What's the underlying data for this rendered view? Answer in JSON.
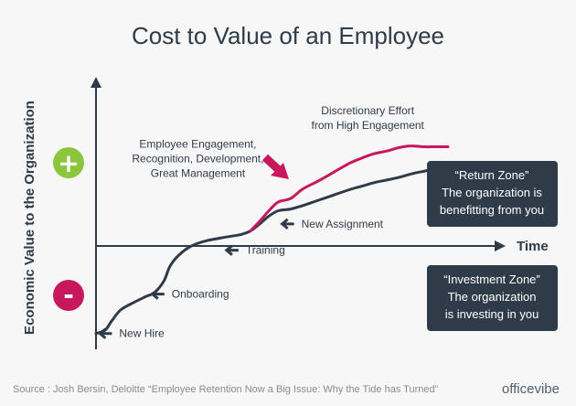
{
  "title": "Cost to Value of an Employee",
  "source": "Source : Josh Bersin, Deloitte “Employee Retention Now a Big Issue: Why the Tide has Turned”",
  "brand": "officevibe",
  "colors": {
    "background": "#f7f7f7",
    "dark": "#2f3b48",
    "engagement_line": "#c8175d",
    "plus": "#8cc63f",
    "minus": "#c8175d",
    "source_text": "#8a8a8a"
  },
  "zones": {
    "return": {
      "title": "“Return Zone”",
      "line1": "The organization is",
      "line2": "benefitting from you"
    },
    "investment": {
      "title": "“Investment Zone”",
      "line1": "The organization",
      "line2": "is investing in you"
    }
  },
  "chart_data": {
    "type": "line",
    "xlabel": "Time",
    "ylabel": "Economic Value to the Organization",
    "y_positive_symbol": "+",
    "y_negative_symbol": "-",
    "series": [
      {
        "values": [
          [
            0,
            -82
          ],
          [
            3,
            -78
          ],
          [
            5,
            -68
          ],
          [
            8,
            -55
          ],
          [
            12,
            -47
          ],
          [
            16,
            -40
          ],
          [
            19,
            -35
          ],
          [
            22,
            -22
          ],
          [
            24,
            -5
          ],
          [
            27,
            8
          ],
          [
            31,
            18
          ],
          [
            36,
            24
          ],
          [
            42,
            28
          ],
          [
            47,
            31
          ],
          [
            50,
            35
          ],
          [
            53,
            43
          ],
          [
            56,
            52
          ],
          [
            59,
            58
          ],
          [
            63,
            60
          ],
          [
            67,
            64
          ],
          [
            72,
            70
          ],
          [
            77,
            76
          ],
          [
            82,
            82
          ],
          [
            86,
            86
          ],
          [
            90,
            90
          ],
          [
            94,
            93
          ],
          [
            98,
            96
          ],
          [
            102,
            100
          ],
          [
            106,
            103
          ],
          [
            110,
            106
          ],
          [
            114,
            108
          ]
        ]
      },
      {
        "values": [
          [
            50,
            35
          ],
          [
            53,
            46
          ],
          [
            56,
            58
          ],
          [
            59,
            68
          ],
          [
            63,
            72
          ],
          [
            67,
            83
          ],
          [
            72,
            92
          ],
          [
            77,
            102
          ],
          [
            82,
            112
          ],
          [
            86,
            118
          ],
          [
            90,
            123
          ],
          [
            94,
            126
          ],
          [
            98,
            130
          ],
          [
            102,
            132
          ],
          [
            106,
            131
          ],
          [
            110,
            131
          ],
          [
            114,
            131
          ]
        ]
      }
    ],
    "annotations": [
      {
        "text": "New Hire",
        "x": 1,
        "y": -82,
        "arrow": true
      },
      {
        "text": "Onboarding",
        "x": 18,
        "y": -37,
        "arrow": true
      },
      {
        "text": "Training",
        "x": 42,
        "y": 13,
        "arrow": true
      },
      {
        "text": "New Assignment",
        "x": 60,
        "y": 43,
        "arrow": true
      },
      {
        "text": "Employee Engagement,\nRecognition, Development,\nGreat Management",
        "x": 33,
        "y": 130,
        "arrow": false
      },
      {
        "text": "Discretionary Effort\nfrom High Engagement",
        "x": 88,
        "y": 168,
        "arrow": false
      }
    ],
    "xlim": [
      0,
      114
    ],
    "ylim": [
      -100,
      215
    ],
    "grid": false,
    "legend": "none"
  }
}
